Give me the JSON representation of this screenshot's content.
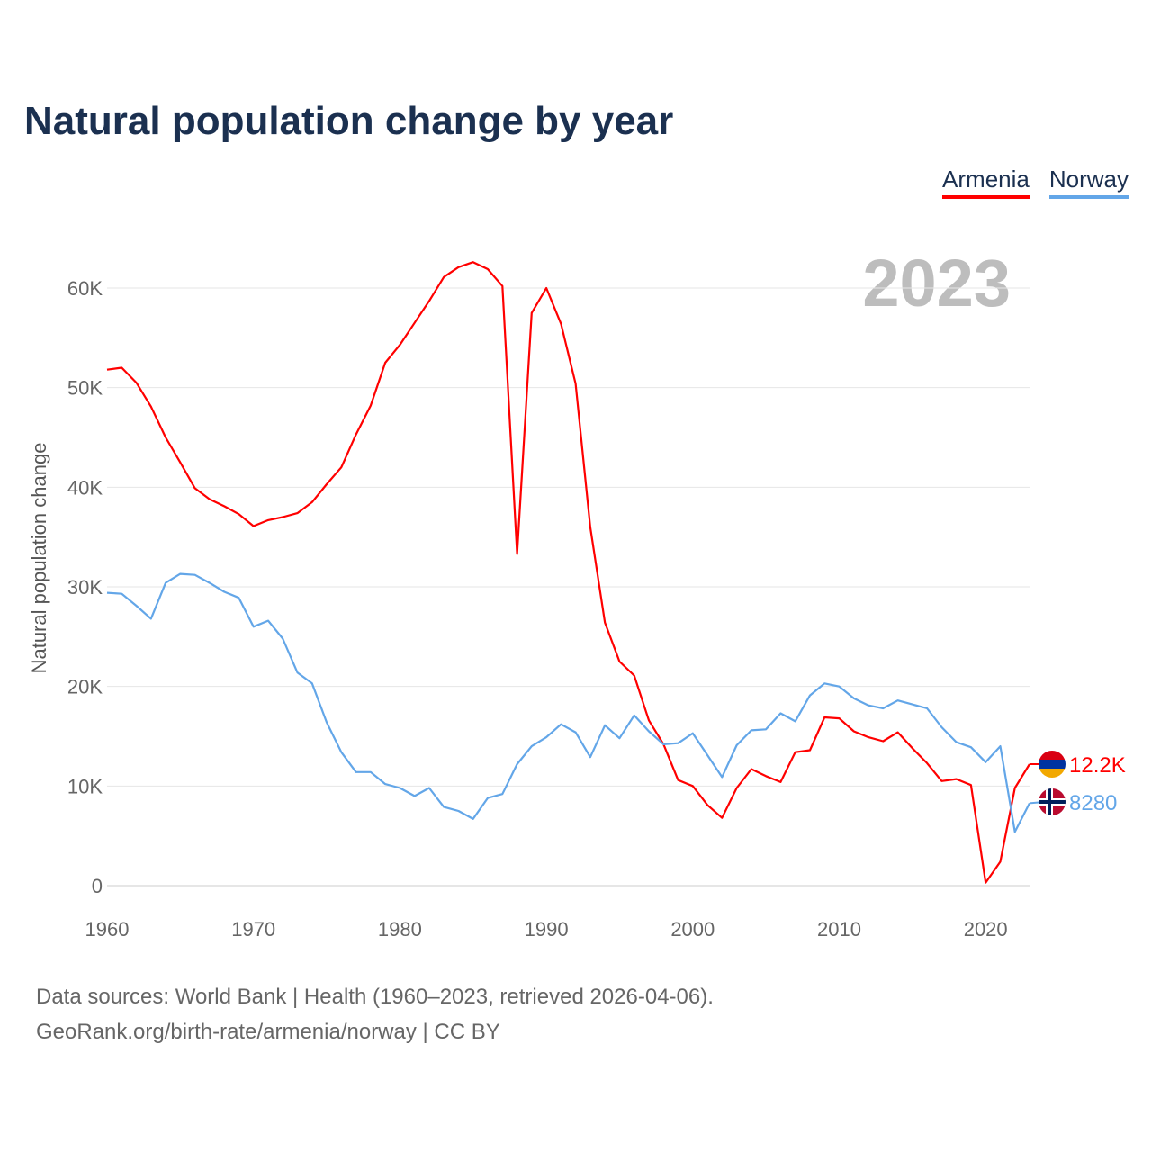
{
  "title": "Natural population change by year",
  "year_label": "2023",
  "footer": {
    "line1": "Data sources: World Bank | Health (1960–2023, retrieved 2026-04-06).",
    "line2": "GeoRank.org/birth-rate/armenia/norway | CC BY"
  },
  "chart_data": {
    "type": "line",
    "title": "Natural population change by year",
    "xlabel": "",
    "ylabel": "Natural population change",
    "xlim": [
      1960,
      2023
    ],
    "ylim": [
      0,
      60000
    ],
    "x_ticks": [
      "1960",
      "1970",
      "1980",
      "1990",
      "2000",
      "2010",
      "2020"
    ],
    "y_ticks": [
      "0",
      "10K",
      "20K",
      "30K",
      "40K",
      "50K",
      "60K"
    ],
    "grid": true,
    "legend_position": "top-right",
    "x": [
      1960,
      1961,
      1962,
      1963,
      1964,
      1965,
      1966,
      1967,
      1968,
      1969,
      1970,
      1971,
      1972,
      1973,
      1974,
      1975,
      1976,
      1977,
      1978,
      1979,
      1980,
      1981,
      1982,
      1983,
      1984,
      1985,
      1986,
      1987,
      1988,
      1989,
      1990,
      1991,
      1992,
      1993,
      1994,
      1995,
      1996,
      1997,
      1998,
      1999,
      2000,
      2001,
      2002,
      2003,
      2004,
      2005,
      2006,
      2007,
      2008,
      2009,
      2010,
      2011,
      2012,
      2013,
      2014,
      2015,
      2016,
      2017,
      2018,
      2019,
      2020,
      2021,
      2022,
      2023
    ],
    "series": [
      {
        "name": "Armenia",
        "color": "#ff0000",
        "end_label": "12.2K",
        "values": [
          51800,
          52000,
          50500,
          48100,
          45000,
          42500,
          39900,
          38800,
          38100,
          37300,
          36100,
          36700,
          37000,
          37400,
          38500,
          40300,
          42000,
          45300,
          48200,
          52500,
          54300,
          56500,
          58700,
          61100,
          62100,
          62600,
          61900,
          60200,
          33300,
          57500,
          60000,
          56400,
          50400,
          36000,
          26400,
          22500,
          21100,
          16600,
          14200,
          10600,
          10000,
          8100,
          6800,
          9800,
          11700,
          11000,
          10400,
          13400,
          13600,
          16900,
          16800,
          15500,
          14900,
          14500,
          15400,
          13800,
          12300,
          10500,
          10700,
          10100,
          300,
          2400,
          9800,
          12200
        ]
      },
      {
        "name": "Norway",
        "color": "#63a6e8",
        "end_label": "8280",
        "values": [
          29400,
          29300,
          28100,
          26800,
          30400,
          31300,
          31200,
          30400,
          29500,
          28900,
          26000,
          26600,
          24800,
          21400,
          20300,
          16400,
          13400,
          11400,
          11400,
          10200,
          9800,
          9000,
          9800,
          7900,
          7500,
          6700,
          8800,
          9200,
          12200,
          14000,
          14900,
          16200,
          15400,
          12900,
          16100,
          14800,
          17100,
          15500,
          14200,
          14300,
          15300,
          13100,
          10900,
          14100,
          15600,
          15700,
          17300,
          16500,
          19100,
          20300,
          20000,
          18800,
          18100,
          17800,
          18600,
          18200,
          17800,
          15900,
          14400,
          13900,
          12400,
          14000,
          5400,
          8280
        ]
      }
    ]
  }
}
